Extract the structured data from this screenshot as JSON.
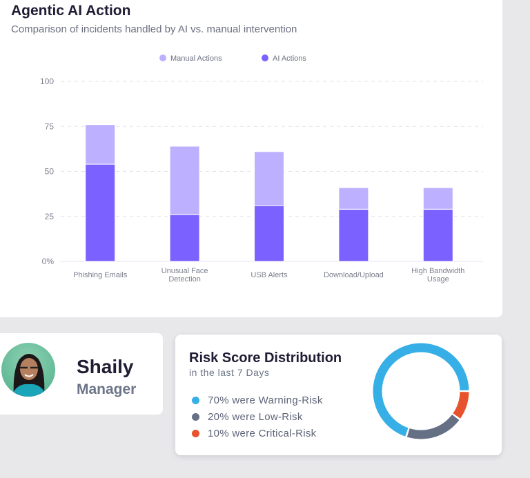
{
  "chart_data": {
    "type": "bar",
    "stacked": true,
    "title": "Agentic AI Action",
    "subtitle": "Comparison of incidents handled by AI vs. manual intervention",
    "categories": [
      [
        "Phishing Emails"
      ],
      [
        "Unusual Face",
        "Detection"
      ],
      [
        "USB Alerts"
      ],
      [
        "Download/Upload"
      ],
      [
        "High Bandwidth",
        "Usage"
      ]
    ],
    "series": [
      {
        "name": "AI Actions",
        "color": "#7b61ff",
        "values": [
          54,
          26,
          31,
          29,
          29
        ]
      },
      {
        "name": "Manual Actions",
        "color": "#bdb1ff",
        "values": [
          22,
          38,
          30,
          12,
          12
        ]
      }
    ],
    "legend_order": [
      "Manual Actions",
      "AI Actions"
    ],
    "yticks": [
      "0%",
      "25",
      "50",
      "75",
      "100"
    ],
    "ylim": [
      0,
      100
    ],
    "grid": true,
    "legend": "top"
  },
  "profile": {
    "name": "Shaily",
    "role": "Manager"
  },
  "risk": {
    "title": "Risk Score Distribution",
    "subtitle": "in the last 7 Days",
    "items": [
      {
        "label": "70% were Warning-Risk",
        "value": 70,
        "color": "#36aee6"
      },
      {
        "label": "20% were Low-Risk",
        "value": 20,
        "color": "#667085"
      },
      {
        "label": "10% were Critical-Risk",
        "value": 10,
        "color": "#e6532d"
      }
    ]
  }
}
